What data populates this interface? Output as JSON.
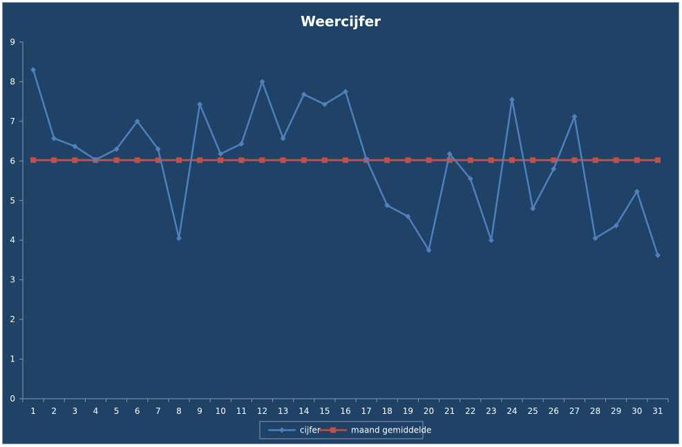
{
  "chart_data": {
    "type": "line",
    "title": "Weercijfer",
    "xlabel": "",
    "ylabel": "",
    "categories": [
      "1",
      "2",
      "3",
      "4",
      "5",
      "6",
      "7",
      "8",
      "9",
      "10",
      "11",
      "12",
      "13",
      "14",
      "15",
      "16",
      "17",
      "18",
      "19",
      "20",
      "21",
      "22",
      "23",
      "24",
      "25",
      "26",
      "27",
      "28",
      "29",
      "30",
      "31"
    ],
    "ylim": [
      0,
      9
    ],
    "yticks": [
      "0",
      "1",
      "2",
      "3",
      "4",
      "5",
      "6",
      "7",
      "8",
      "9"
    ],
    "grid": false,
    "legend_position": "bottom",
    "series": [
      {
        "name": "cijfer",
        "color": "#4f81bd",
        "marker": "diamond",
        "values": [
          8.3,
          6.57,
          6.37,
          6.03,
          6.3,
          7.0,
          6.3,
          4.05,
          7.43,
          6.18,
          6.43,
          8.0,
          6.57,
          7.68,
          7.43,
          7.75,
          6.05,
          4.88,
          4.6,
          3.75,
          6.18,
          5.55,
          4.0,
          7.55,
          4.8,
          5.8,
          7.12,
          4.05,
          4.37,
          5.23,
          3.62
        ]
      },
      {
        "name": "maand gemiddelde",
        "color": "#c0504d",
        "marker": "square",
        "values": [
          6.02,
          6.02,
          6.02,
          6.02,
          6.02,
          6.02,
          6.02,
          6.02,
          6.02,
          6.02,
          6.02,
          6.02,
          6.02,
          6.02,
          6.02,
          6.02,
          6.02,
          6.02,
          6.02,
          6.02,
          6.02,
          6.02,
          6.02,
          6.02,
          6.02,
          6.02,
          6.02,
          6.02,
          6.02,
          6.02,
          6.02
        ]
      }
    ]
  }
}
